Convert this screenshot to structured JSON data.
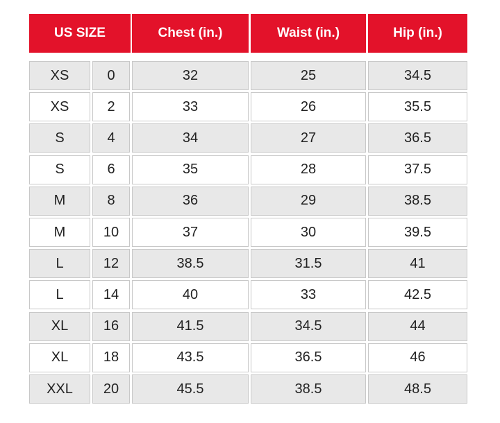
{
  "table": {
    "header": [
      "US SIZE",
      "Chest (in.)",
      "Waist (in.)",
      "Hip (in.)"
    ],
    "rows": [
      [
        "XS",
        "0",
        "32",
        "25",
        "34.5"
      ],
      [
        "XS",
        "2",
        "33",
        "26",
        "35.5"
      ],
      [
        "S",
        "4",
        "34",
        "27",
        "36.5"
      ],
      [
        "S",
        "6",
        "35",
        "28",
        "37.5"
      ],
      [
        "M",
        "8",
        "36",
        "29",
        "38.5"
      ],
      [
        "M",
        "10",
        "37",
        "30",
        "39.5"
      ],
      [
        "L",
        "12",
        "38.5",
        "31.5",
        "41"
      ],
      [
        "L",
        "14",
        "40",
        "33",
        "42.5"
      ],
      [
        "XL",
        "16",
        "41.5",
        "34.5",
        "44"
      ],
      [
        "XL",
        "18",
        "43.5",
        "36.5",
        "46"
      ],
      [
        "XXL",
        "20",
        "45.5",
        "38.5",
        "48.5"
      ]
    ]
  }
}
